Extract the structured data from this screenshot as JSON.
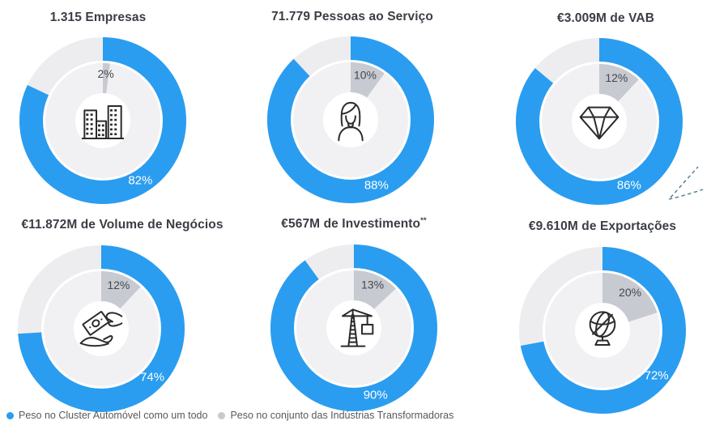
{
  "colors": {
    "primary": "#2a9df0",
    "primary_track": "#ededf0",
    "secondary": "#c7cad0",
    "secondary_track": "#f1f1f4",
    "title_text": "#3a3e45",
    "primary_label_text": "#ffffff",
    "secondary_label_text": "#45484e",
    "legend_text": "#595959",
    "icon_stroke": "#2b2b2b",
    "decoration_dash": "#4d7c90"
  },
  "legend": {
    "items": [
      {
        "label": "Peso no Cluster Automóvel como um todo",
        "color": "#2a9df0"
      },
      {
        "label": "Peso no conjunto das Indústrias Transformadoras",
        "color": "#c7cad0"
      }
    ]
  },
  "chart_data": [
    {
      "type": "donut",
      "title": "1.315 Empresas",
      "title_sup": "",
      "icon": "buildings-icon",
      "series": [
        {
          "name": "Peso no Cluster Automóvel como um todo",
          "value": 82
        },
        {
          "name": "Peso no conjunto das Indústrias Transformadoras",
          "value": 2
        }
      ],
      "labels": {
        "primary": "82%",
        "secondary": "2%"
      }
    },
    {
      "type": "donut",
      "title": "71.779 Pessoas ao Serviço",
      "title_sup": "",
      "icon": "person-icon",
      "series": [
        {
          "name": "Peso no Cluster Automóvel como um todo",
          "value": 88
        },
        {
          "name": "Peso no conjunto das Indústrias Transformadoras",
          "value": 10
        }
      ],
      "labels": {
        "primary": "88%",
        "secondary": "10%"
      }
    },
    {
      "type": "donut",
      "title": "€3.009M de VAB",
      "title_sup": "",
      "icon": "diamond-icon",
      "series": [
        {
          "name": "Peso no Cluster Automóvel como um todo",
          "value": 86
        },
        {
          "name": "Peso no conjunto das Indústrias Transformadoras",
          "value": 12
        }
      ],
      "labels": {
        "primary": "86%",
        "secondary": "12%"
      }
    },
    {
      "type": "donut",
      "title": "€11.872M de Volume de Negócios",
      "title_sup": "",
      "icon": "money-hand-icon",
      "series": [
        {
          "name": "Peso no Cluster Automóvel como um todo",
          "value": 74
        },
        {
          "name": "Peso no conjunto das Indústrias Transformadoras",
          "value": 12
        }
      ],
      "labels": {
        "primary": "74%",
        "secondary": "12%"
      }
    },
    {
      "type": "donut",
      "title": "€567M de Investimento",
      "title_sup": "**",
      "icon": "crane-icon",
      "series": [
        {
          "name": "Peso no Cluster Automóvel como um todo",
          "value": 90
        },
        {
          "name": "Peso no conjunto das Indústrias Transformadoras",
          "value": 13
        }
      ],
      "labels": {
        "primary": "90%",
        "secondary": "13%"
      }
    },
    {
      "type": "donut",
      "title": "€9.610M de Exportações",
      "title_sup": "",
      "icon": "globe-icon",
      "series": [
        {
          "name": "Peso no Cluster Automóvel como um todo",
          "value": 72
        },
        {
          "name": "Peso no conjunto das Indústrias Transformadoras",
          "value": 20
        }
      ],
      "labels": {
        "primary": "72%",
        "secondary": "20%"
      }
    }
  ]
}
